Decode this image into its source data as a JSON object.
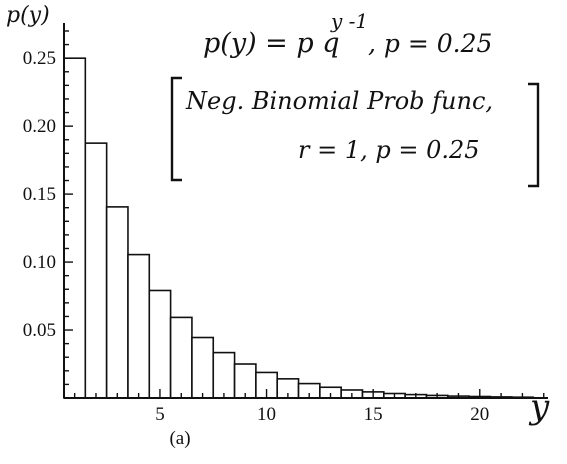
{
  "chart_data": {
    "type": "bar",
    "x": [
      1,
      2,
      3,
      4,
      5,
      6,
      7,
      8,
      9,
      10,
      11,
      12,
      13,
      14,
      15,
      16,
      17,
      18,
      19,
      20,
      21,
      22
    ],
    "values": [
      0.25,
      0.1875,
      0.1406,
      0.1055,
      0.0791,
      0.0593,
      0.0445,
      0.0334,
      0.025,
      0.0188,
      0.0141,
      0.0106,
      0.0079,
      0.0059,
      0.0045,
      0.0033,
      0.0025,
      0.0019,
      0.0014,
      0.0011,
      0.0008,
      0.0006
    ],
    "xlim": [
      0.5,
      23.2
    ],
    "ylim": [
      0,
      0.27
    ],
    "x_ticks": [
      5,
      10,
      15,
      20
    ],
    "y_ticks": [
      0.05,
      0.1,
      0.15,
      0.2,
      0.25
    ],
    "x_tick_labels": [
      "5",
      "10",
      "15",
      "20"
    ],
    "y_tick_labels": [
      "0.05",
      "0.10",
      "0.15",
      "0.20",
      "0.25"
    ],
    "ylabel": "p(y)",
    "xlabel": "y",
    "caption": "(a)",
    "annotations": {
      "formula_lhs": "p(y) = p q",
      "formula_exp": "y -1",
      "formula_rhs": ",  p = 0.25",
      "bracket_line1": "Neg. Binomial Prob func,",
      "bracket_line2": "r = 1,  p = 0.25"
    },
    "grid": false,
    "bar_fill": "#ffffff",
    "bar_edge": "#111111"
  }
}
